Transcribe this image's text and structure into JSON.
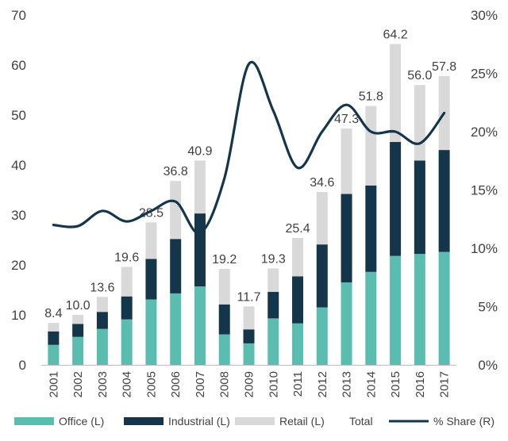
{
  "chart_data": {
    "type": "bar",
    "stacked": true,
    "categories": [
      "2001",
      "2002",
      "2003",
      "2004",
      "2005",
      "2006",
      "2007",
      "2008",
      "2009",
      "2010",
      "2011",
      "2012",
      "2013",
      "2014",
      "2015",
      "2016",
      "2017"
    ],
    "series": [
      {
        "name": "Office (L)",
        "color": "#5bbcb0",
        "values": [
          4.0,
          5.6,
          7.2,
          9.1,
          13.1,
          14.3,
          15.7,
          6.1,
          4.3,
          9.3,
          8.3,
          11.5,
          16.5,
          18.6,
          21.8,
          22.2,
          22.6
        ]
      },
      {
        "name": "Industrial (L)",
        "color": "#15364a",
        "values": [
          2.7,
          2.6,
          3.4,
          4.6,
          8.1,
          10.9,
          14.6,
          6.0,
          2.8,
          5.3,
          9.4,
          12.6,
          17.7,
          17.3,
          22.8,
          18.7,
          20.4
        ]
      },
      {
        "name": "Retail (L)",
        "color": "#d9d9d9",
        "values": [
          1.7,
          1.8,
          3.0,
          5.9,
          7.3,
          11.6,
          10.6,
          7.1,
          4.6,
          4.7,
          7.7,
          10.5,
          13.1,
          15.9,
          19.6,
          15.1,
          14.8
        ]
      }
    ],
    "totals": {
      "name": "Total",
      "values": [
        8.4,
        10.0,
        13.6,
        19.6,
        28.5,
        36.8,
        40.9,
        19.2,
        11.7,
        19.3,
        25.4,
        34.6,
        47.3,
        51.8,
        64.2,
        56.0,
        57.8
      ]
    },
    "total_labels": [
      "8.4",
      "10.0",
      "13.6",
      "19.6",
      "28.5",
      "36.8",
      "40.9",
      "19.2",
      "11.7",
      "19.3",
      "25.4",
      "34.6",
      "47.3",
      "51.8",
      "64.2",
      "56.0",
      "57.8"
    ],
    "line": {
      "name": "% Share (R)",
      "color": "#15364a",
      "values": [
        12.0,
        11.9,
        13.2,
        12.3,
        13.2,
        14.0,
        11.3,
        16.0,
        25.8,
        21.8,
        16.9,
        20.0,
        22.3,
        20.0,
        20.0,
        19.0,
        21.6
      ]
    },
    "y_left": {
      "min": 0,
      "max": 70,
      "step": 10,
      "ticks": [
        "0",
        "10",
        "20",
        "30",
        "40",
        "50",
        "60",
        "70"
      ]
    },
    "y_right": {
      "min": 0,
      "max": 30,
      "step": 5,
      "ticks": [
        "0%",
        "5%",
        "10%",
        "15%",
        "20%",
        "25%",
        "30%"
      ]
    },
    "legend": [
      {
        "label": "Office (L)",
        "kind": "swatch",
        "color": "#5bbcb0"
      },
      {
        "label": "Industrial (L)",
        "kind": "swatch",
        "color": "#15364a"
      },
      {
        "label": "Retail (L)",
        "kind": "swatch",
        "color": "#d9d9d9"
      },
      {
        "label": "Total",
        "kind": "none",
        "color": "#ffffff"
      },
      {
        "label": "% Share (R)",
        "kind": "line",
        "color": "#15364a"
      }
    ],
    "legend_position": "bottom",
    "grid": false,
    "title": "",
    "xlabel": "",
    "ylabel": ""
  }
}
